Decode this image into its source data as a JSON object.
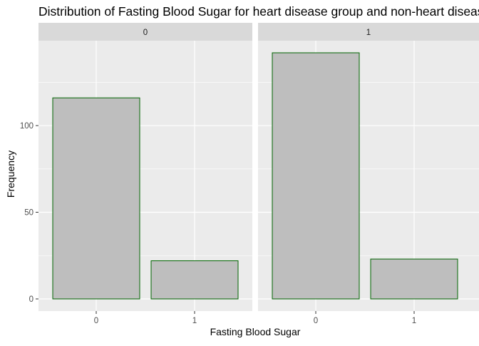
{
  "chart_data": {
    "type": "bar",
    "title": "Distribution of Fasting Blood Sugar for heart disease group and non-heart disease group",
    "xlabel": "Fasting Blood Sugar",
    "ylabel": "Frequency",
    "categories": [
      "0",
      "1"
    ],
    "facets": [
      {
        "label": "0",
        "values": [
          116,
          22
        ]
      },
      {
        "label": "1",
        "values": [
          142,
          23
        ]
      }
    ],
    "y_ticks": [
      0,
      50,
      100
    ],
    "ylim": [
      -7,
      149
    ],
    "grid": true,
    "colors": {
      "bar_fill": "#bebebe",
      "bar_stroke": "#006400",
      "panel_bg": "#ebebeb",
      "strip_bg": "#d9d9d9",
      "grid": "#ffffff",
      "text": "#000000",
      "tick_text": "#4d4d4d"
    }
  }
}
